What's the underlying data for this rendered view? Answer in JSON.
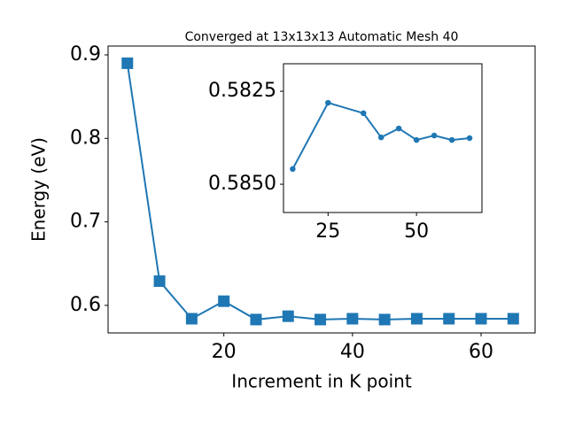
{
  "chart_data": [
    {
      "type": "line",
      "title": "Converged at 13x13x13 Automatic Mesh 40",
      "xlabel": "Increment in K point",
      "ylabel": "Energy (eV)",
      "x": [
        5,
        10,
        15,
        20,
        25,
        30,
        35,
        40,
        45,
        50,
        55,
        60,
        65
      ],
      "series": [
        {
          "color": "#1f77b4",
          "marker": "square",
          "values": [
            0.89,
            0.629,
            0.584,
            0.605,
            0.583,
            0.587,
            0.583,
            0.584,
            0.583,
            0.584,
            0.584,
            0.584,
            0.584
          ]
        }
      ],
      "xlim": [
        2,
        68.4
      ],
      "ylim": [
        0.567,
        0.9106
      ],
      "xticks": [
        20,
        40,
        60
      ],
      "yticks": [
        0.6,
        0.7,
        0.8,
        0.9
      ],
      "grid": false
    },
    {
      "type": "line",
      "x": [
        15,
        25,
        35,
        40,
        45,
        50,
        55,
        60,
        65
      ],
      "series": [
        {
          "color": "#1f77b4",
          "marker": "circle",
          "values": [
            0.58459,
            0.58281,
            0.58309,
            0.58374,
            0.5835,
            0.58381,
            0.58369,
            0.58381,
            0.58376
          ]
        }
      ],
      "xlim": [
        12.4,
        68.5
      ],
      "ylim": [
        0.58576,
        0.58176
      ],
      "xticks": [
        25,
        50
      ],
      "yticks": [
        0.5825,
        {
          "value": 0.585,
          "label": "0.5850"
        }
      ],
      "grid": false
    }
  ]
}
